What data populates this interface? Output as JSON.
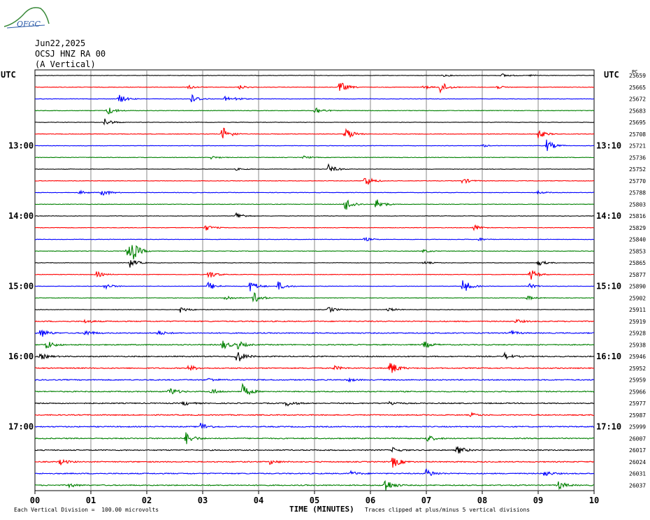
{
  "logo_text": "OFGC",
  "header": {
    "date": "Jun22,2025",
    "station": "OCSJ HNZ RA 00",
    "component": "(A Vertical)"
  },
  "left_axis_label": "UTC",
  "right_axis_label": "UTC",
  "right_top_tag": "PC",
  "footer": {
    "scale_note": "Each Vertical Division =  100.00 microvolts",
    "xlabel": "TIME (MINUTES)",
    "clip_note": "Traces clipped at plus/minus 5 vertical divisions"
  },
  "colors": {
    "trace_cycle": [
      "#000000",
      "#ff0000",
      "#0000ff",
      "#008000"
    ],
    "grid": "#888888"
  },
  "chart_data": {
    "type": "line",
    "xlabel": "TIME (MINUTES)",
    "xlim": [
      0,
      10
    ],
    "x_ticks": [
      "00",
      "01",
      "02",
      "03",
      "04",
      "05",
      "06",
      "07",
      "08",
      "09",
      "10"
    ],
    "left_time_labels": [
      "13:00",
      "14:00",
      "15:00",
      "16:00",
      "17:00"
    ],
    "right_time_labels": [
      "13:10",
      "14:10",
      "15:10",
      "16:10",
      "17:10"
    ],
    "trace_ids": [
      "25659",
      "25665",
      "25672",
      "25683",
      "25695",
      "25708",
      "25721",
      "25736",
      "25752",
      "25770",
      "25788",
      "25803",
      "25816",
      "25829",
      "25840",
      "25853",
      "25865",
      "25877",
      "25890",
      "25902",
      "25911",
      "25919",
      "25928",
      "25938",
      "25946",
      "25952",
      "25959",
      "25966",
      "25977",
      "25987",
      "25999",
      "26007",
      "26017",
      "26024",
      "26031",
      "26037"
    ],
    "events": [
      {
        "trace": 0,
        "t": 8.35,
        "amp": 1.2
      },
      {
        "trace": 0,
        "t": 7.3,
        "amp": 0.6
      },
      {
        "trace": 0,
        "t": 8.85,
        "amp": 0.5
      },
      {
        "trace": 1,
        "t": 2.75,
        "amp": 1.2
      },
      {
        "trace": 1,
        "t": 3.65,
        "amp": 1.5
      },
      {
        "trace": 1,
        "t": 5.45,
        "amp": 4
      },
      {
        "trace": 1,
        "t": 7.25,
        "amp": 4
      },
      {
        "trace": 1,
        "t": 6.95,
        "amp": 1.2
      },
      {
        "trace": 1,
        "t": 8.25,
        "amp": 1.2
      },
      {
        "trace": 2,
        "t": 1.5,
        "amp": 3
      },
      {
        "trace": 2,
        "t": 2.8,
        "amp": 3
      },
      {
        "trace": 2,
        "t": 3.4,
        "amp": 1.5
      },
      {
        "trace": 2,
        "t": 3.6,
        "amp": 1
      },
      {
        "trace": 3,
        "t": 1.3,
        "amp": 3
      },
      {
        "trace": 3,
        "t": 5.0,
        "amp": 3
      },
      {
        "trace": 4,
        "t": 1.25,
        "amp": 2.5
      },
      {
        "trace": 5,
        "t": 3.35,
        "amp": 5
      },
      {
        "trace": 5,
        "t": 5.55,
        "amp": 5
      },
      {
        "trace": 5,
        "t": 9.0,
        "amp": 3
      },
      {
        "trace": 6,
        "t": 9.15,
        "amp": 4
      },
      {
        "trace": 6,
        "t": 8.0,
        "amp": 0.8
      },
      {
        "trace": 7,
        "t": 3.15,
        "amp": 1
      },
      {
        "trace": 7,
        "t": 4.8,
        "amp": 1
      },
      {
        "trace": 8,
        "t": 5.25,
        "amp": 3
      },
      {
        "trace": 8,
        "t": 3.6,
        "amp": 0.6
      },
      {
        "trace": 9,
        "t": 5.9,
        "amp": 4
      },
      {
        "trace": 9,
        "t": 7.65,
        "amp": 2
      },
      {
        "trace": 10,
        "t": 1.2,
        "amp": 2.5
      },
      {
        "trace": 10,
        "t": 0.8,
        "amp": 1.2
      },
      {
        "trace": 10,
        "t": 9.0,
        "amp": 1
      },
      {
        "trace": 11,
        "t": 5.55,
        "amp": 5
      },
      {
        "trace": 11,
        "t": 6.1,
        "amp": 4
      },
      {
        "trace": 12,
        "t": 3.6,
        "amp": 2.5
      },
      {
        "trace": 13,
        "t": 3.05,
        "amp": 2
      },
      {
        "trace": 13,
        "t": 7.85,
        "amp": 2
      },
      {
        "trace": 14,
        "t": 5.9,
        "amp": 1.2
      },
      {
        "trace": 14,
        "t": 7.9,
        "amp": 1.2
      },
      {
        "trace": 15,
        "t": 1.65,
        "amp": 5
      },
      {
        "trace": 15,
        "t": 1.75,
        "amp": 4
      },
      {
        "trace": 15,
        "t": 6.95,
        "amp": 1
      },
      {
        "trace": 16,
        "t": 1.7,
        "amp": 3
      },
      {
        "trace": 16,
        "t": 6.95,
        "amp": 1
      },
      {
        "trace": 16,
        "t": 9.0,
        "amp": 2
      },
      {
        "trace": 17,
        "t": 1.1,
        "amp": 2
      },
      {
        "trace": 17,
        "t": 3.1,
        "amp": 3
      },
      {
        "trace": 17,
        "t": 8.85,
        "amp": 4
      },
      {
        "trace": 18,
        "t": 1.25,
        "amp": 2
      },
      {
        "trace": 18,
        "t": 3.1,
        "amp": 3
      },
      {
        "trace": 18,
        "t": 3.85,
        "amp": 4
      },
      {
        "trace": 18,
        "t": 4.35,
        "amp": 3
      },
      {
        "trace": 18,
        "t": 7.65,
        "amp": 5
      },
      {
        "trace": 18,
        "t": 8.85,
        "amp": 1.5
      },
      {
        "trace": 19,
        "t": 3.4,
        "amp": 2
      },
      {
        "trace": 19,
        "t": 3.9,
        "amp": 4
      },
      {
        "trace": 19,
        "t": 8.8,
        "amp": 1.5
      },
      {
        "trace": 20,
        "t": 2.6,
        "amp": 2
      },
      {
        "trace": 20,
        "t": 5.25,
        "amp": 2
      },
      {
        "trace": 20,
        "t": 6.3,
        "amp": 1.5
      },
      {
        "trace": 21,
        "t": 0.9,
        "amp": 1.2
      },
      {
        "trace": 21,
        "t": 8.6,
        "amp": 1.2
      },
      {
        "trace": 22,
        "t": 0.1,
        "amp": 3
      },
      {
        "trace": 22,
        "t": 0.9,
        "amp": 2
      },
      {
        "trace": 22,
        "t": 2.2,
        "amp": 1.5
      },
      {
        "trace": 22,
        "t": 8.5,
        "amp": 1.5
      },
      {
        "trace": 23,
        "t": 0.2,
        "amp": 3
      },
      {
        "trace": 23,
        "t": 3.35,
        "amp": 3
      },
      {
        "trace": 23,
        "t": 3.6,
        "amp": 3
      },
      {
        "trace": 23,
        "t": 6.95,
        "amp": 2.5
      },
      {
        "trace": 24,
        "t": 0.1,
        "amp": 2
      },
      {
        "trace": 24,
        "t": 3.6,
        "amp": 5
      },
      {
        "trace": 24,
        "t": 8.4,
        "amp": 2
      },
      {
        "trace": 25,
        "t": 2.75,
        "amp": 2
      },
      {
        "trace": 25,
        "t": 5.35,
        "amp": 1.5
      },
      {
        "trace": 25,
        "t": 6.35,
        "amp": 5
      },
      {
        "trace": 26,
        "t": 3.1,
        "amp": 1.2
      },
      {
        "trace": 26,
        "t": 5.6,
        "amp": 1
      },
      {
        "trace": 27,
        "t": 2.4,
        "amp": 3
      },
      {
        "trace": 27,
        "t": 3.7,
        "amp": 5
      },
      {
        "trace": 27,
        "t": 3.15,
        "amp": 2
      },
      {
        "trace": 28,
        "t": 4.5,
        "amp": 2
      },
      {
        "trace": 28,
        "t": 2.65,
        "amp": 1.5
      },
      {
        "trace": 28,
        "t": 6.35,
        "amp": 1.5
      },
      {
        "trace": 29,
        "t": 7.8,
        "amp": 1.2
      },
      {
        "trace": 30,
        "t": 2.95,
        "amp": 3
      },
      {
        "trace": 31,
        "t": 2.7,
        "amp": 4
      },
      {
        "trace": 31,
        "t": 7.0,
        "amp": 2.5
      },
      {
        "trace": 32,
        "t": 7.55,
        "amp": 3
      },
      {
        "trace": 32,
        "t": 6.4,
        "amp": 1.5
      },
      {
        "trace": 33,
        "t": 0.45,
        "amp": 2
      },
      {
        "trace": 33,
        "t": 6.4,
        "amp": 4
      },
      {
        "trace": 33,
        "t": 4.2,
        "amp": 1.5
      },
      {
        "trace": 34,
        "t": 7.0,
        "amp": 3
      },
      {
        "trace": 34,
        "t": 9.1,
        "amp": 2
      },
      {
        "trace": 34,
        "t": 5.65,
        "amp": 1.5
      },
      {
        "trace": 35,
        "t": 0.6,
        "amp": 1.5
      },
      {
        "trace": 35,
        "t": 6.25,
        "amp": 5
      },
      {
        "trace": 35,
        "t": 9.35,
        "amp": 3
      }
    ]
  }
}
